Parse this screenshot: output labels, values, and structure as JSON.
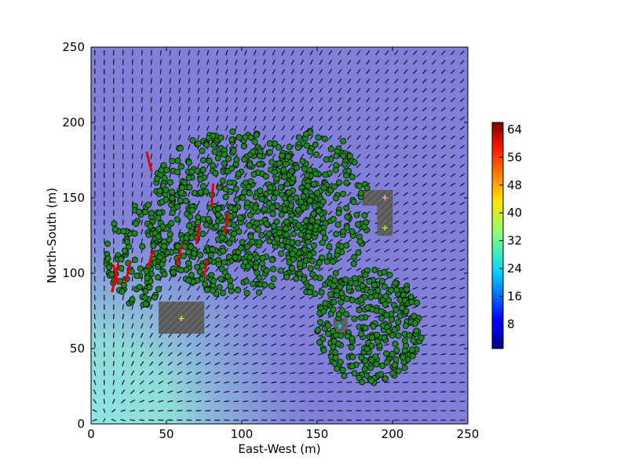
{
  "chart_data": {
    "type": "scatter",
    "xlabel": "East-West (m)",
    "ylabel": "North-South (m)",
    "xlim": [
      0,
      250
    ],
    "ylim": [
      0,
      250
    ],
    "x_ticks": [
      0,
      50,
      100,
      150,
      200,
      250
    ],
    "y_ticks": [
      0,
      50,
      100,
      150,
      200,
      250
    ],
    "background_color": "#8080d8",
    "colorbar": {
      "ticks": [
        8,
        16,
        24,
        32,
        40,
        48,
        56,
        64
      ],
      "range": [
        1,
        66
      ],
      "colormap": "jet"
    },
    "buildings": [
      {
        "x0": 45,
        "x1": 75,
        "y0": 60,
        "y1": 81
      },
      {
        "x0": 161,
        "x1": 170,
        "y0": 59,
        "y1": 70
      },
      {
        "x0": 180,
        "x1": 200,
        "y0": 145,
        "y1": 155
      },
      {
        "x0": 190,
        "x1": 200,
        "y0": 125,
        "y1": 155
      }
    ],
    "markers": [
      {
        "x": 60,
        "y": 70,
        "color": "#ffff00"
      },
      {
        "x": 165,
        "y": 65,
        "color": "#00e0e0"
      },
      {
        "x": 195,
        "y": 150,
        "color": "#ffb0b0"
      },
      {
        "x": 195,
        "y": 130,
        "color": "#b0ff40"
      }
    ],
    "high_speed_vectors": [
      {
        "x": 37,
        "y": 180,
        "u": 3,
        "v": -12
      },
      {
        "x": 80,
        "y": 145,
        "u": 1,
        "v": 14
      },
      {
        "x": 89,
        "y": 127,
        "u": 2,
        "v": 13
      },
      {
        "x": 70,
        "y": 120,
        "u": 2,
        "v": 12
      },
      {
        "x": 57,
        "y": 106,
        "u": 3,
        "v": 12
      },
      {
        "x": 38,
        "y": 104,
        "u": 3,
        "v": 11
      },
      {
        "x": 23,
        "y": 94,
        "u": 3,
        "v": 13
      },
      {
        "x": 14,
        "y": 88,
        "u": 4,
        "v": 18
      },
      {
        "x": 18,
        "y": 93,
        "u": -3,
        "v": 12
      },
      {
        "x": 75,
        "y": 98,
        "u": 2,
        "v": 10
      }
    ],
    "point_color": "#1b8a1b",
    "point_clusters": [
      {
        "cx": 95,
        "cy": 140,
        "rx": 60,
        "ry": 55,
        "n": 620
      },
      {
        "cx": 150,
        "cy": 140,
        "rx": 35,
        "ry": 55,
        "n": 260
      },
      {
        "cx": 185,
        "cy": 65,
        "rx": 35,
        "ry": 38,
        "n": 300
      },
      {
        "cx": 30,
        "cy": 110,
        "rx": 20,
        "ry": 35,
        "n": 110
      }
    ]
  }
}
